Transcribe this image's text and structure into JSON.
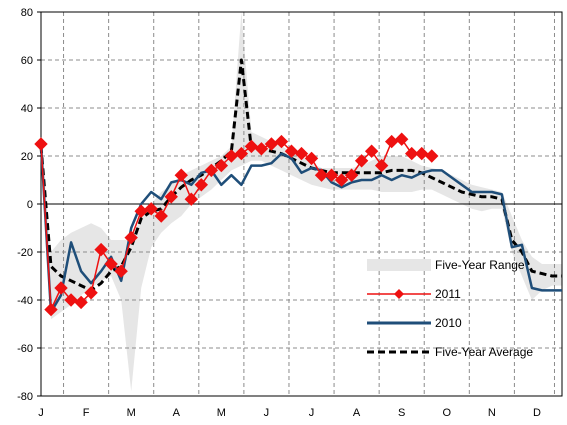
{
  "chart_data": {
    "type": "line",
    "title": "",
    "xlabel": "",
    "ylabel": "",
    "ylim": [
      -80,
      80
    ],
    "yticks": [
      80,
      60,
      40,
      20,
      0,
      -20,
      -40,
      -60,
      -80
    ],
    "x_range": [
      0,
      52
    ],
    "month_ticks": [
      {
        "label": "J",
        "week": 0
      },
      {
        "label": "F",
        "week": 4.5
      },
      {
        "label": "M",
        "week": 9
      },
      {
        "label": "A",
        "week": 13.5
      },
      {
        "label": "M",
        "week": 18
      },
      {
        "label": "J",
        "week": 22.5
      },
      {
        "label": "J",
        "week": 27
      },
      {
        "label": "A",
        "week": 31.5
      },
      {
        "label": "S",
        "week": 36
      },
      {
        "label": "O",
        "week": 40.5
      },
      {
        "label": "N",
        "week": 45
      },
      {
        "label": "D",
        "week": 49.5
      }
    ],
    "grid": true,
    "legend_position": "bottom-right",
    "series": [
      {
        "name": "Five-Year Range",
        "kind": "band",
        "color": "#e6e6e6",
        "x": [
          0,
          1,
          2,
          3,
          4,
          5,
          6,
          7,
          8,
          9,
          10,
          11,
          12,
          13,
          14,
          15,
          16,
          17,
          18,
          19,
          20,
          21,
          22,
          23,
          24,
          25,
          26,
          27,
          28,
          29,
          30,
          31,
          32,
          33,
          34,
          35,
          36,
          37,
          38,
          39,
          40,
          41,
          42,
          43,
          44,
          45,
          46,
          47,
          48,
          49,
          50,
          51,
          52
        ],
        "low": [
          20,
          -48,
          -45,
          -42,
          -38,
          -35,
          -32,
          -30,
          -40,
          -78,
          -35,
          -18,
          -12,
          -8,
          -5,
          0,
          3,
          6,
          10,
          14,
          16,
          18,
          18,
          16,
          14,
          12,
          10,
          8,
          7,
          6,
          6,
          6,
          6,
          6,
          5,
          5,
          5,
          5,
          6,
          6,
          4,
          2,
          0,
          -2,
          -3,
          -2,
          -2,
          -20,
          -30,
          -40,
          -36,
          -34,
          -34
        ],
        "high": [
          28,
          -20,
          -15,
          -12,
          -10,
          -8,
          -10,
          -15,
          -15,
          -15,
          -5,
          0,
          5,
          8,
          12,
          14,
          16,
          18,
          20,
          24,
          80,
          30,
          28,
          26,
          24,
          22,
          20,
          17,
          15,
          15,
          15,
          15,
          16,
          18,
          20,
          20,
          20,
          18,
          16,
          15,
          14,
          12,
          10,
          8,
          7,
          6,
          5,
          -5,
          -15,
          -22,
          -25,
          -25,
          -25
        ]
      },
      {
        "name": "2011",
        "kind": "line",
        "color": "#ee1111",
        "marker": "diamond",
        "x": [
          0,
          1,
          2,
          3,
          4,
          5,
          6,
          7,
          8,
          9,
          10,
          11,
          12,
          13,
          14,
          15,
          16,
          17,
          18,
          19,
          20,
          21,
          22,
          23,
          24,
          25,
          26,
          27,
          28,
          29,
          30,
          31,
          32,
          33,
          34,
          35,
          36,
          37,
          38,
          39
        ],
        "values": [
          25,
          -44,
          -35,
          -40,
          -41,
          -37,
          -19,
          -25,
          -28,
          -14,
          -3,
          -2,
          -5,
          3,
          12,
          2,
          8,
          14,
          16,
          20,
          21,
          24,
          23,
          25,
          26,
          22,
          21,
          19,
          12,
          12,
          10,
          12,
          18,
          22,
          16,
          26,
          27,
          21,
          21,
          20
        ]
      },
      {
        "name": "2010",
        "kind": "line",
        "color": "#1f4e79",
        "x": [
          0,
          1,
          2,
          3,
          4,
          5,
          6,
          7,
          8,
          9,
          10,
          11,
          12,
          13,
          14,
          15,
          16,
          17,
          18,
          19,
          20,
          21,
          22,
          23,
          24,
          25,
          26,
          27,
          28,
          29,
          30,
          31,
          32,
          33,
          34,
          35,
          36,
          37,
          38,
          39,
          40,
          41,
          42,
          43,
          44,
          45,
          46,
          47,
          48,
          49,
          50,
          51,
          52
        ],
        "values": [
          25,
          -45,
          -38,
          -16,
          -28,
          -33,
          -28,
          -22,
          -32,
          -10,
          0,
          5,
          2,
          9,
          10,
          8,
          13,
          14,
          8,
          12,
          8,
          16,
          16,
          17,
          21,
          19,
          13,
          15,
          14,
          9,
          7,
          9,
          10,
          10,
          12,
          10,
          12,
          11,
          13,
          14,
          14,
          11,
          8,
          5,
          5,
          5,
          4,
          -18,
          -17,
          -35,
          -36,
          -36,
          -36
        ]
      },
      {
        "name": "Five-Year Average",
        "kind": "line",
        "color": "#000000",
        "dash": true,
        "x": [
          0,
          1,
          2,
          3,
          4,
          5,
          6,
          7,
          8,
          9,
          10,
          11,
          12,
          13,
          14,
          15,
          16,
          17,
          18,
          19,
          20,
          21,
          22,
          23,
          24,
          25,
          26,
          27,
          28,
          29,
          30,
          31,
          32,
          33,
          34,
          35,
          36,
          37,
          38,
          39,
          40,
          41,
          42,
          43,
          44,
          45,
          46,
          47,
          48,
          49,
          50,
          51,
          52
        ],
        "values": [
          24,
          -26,
          -30,
          -32,
          -34,
          -36,
          -33,
          -28,
          -26,
          -18,
          -6,
          -3,
          -2,
          3,
          7,
          10,
          12,
          15,
          18,
          22,
          60,
          23,
          23,
          22,
          21,
          19,
          17,
          15,
          14,
          13,
          13,
          13,
          13,
          13,
          13,
          14,
          14,
          14,
          13,
          11,
          9,
          7,
          5,
          4,
          3,
          3,
          2,
          -15,
          -20,
          -28,
          -29,
          -30,
          -30
        ]
      }
    ]
  }
}
